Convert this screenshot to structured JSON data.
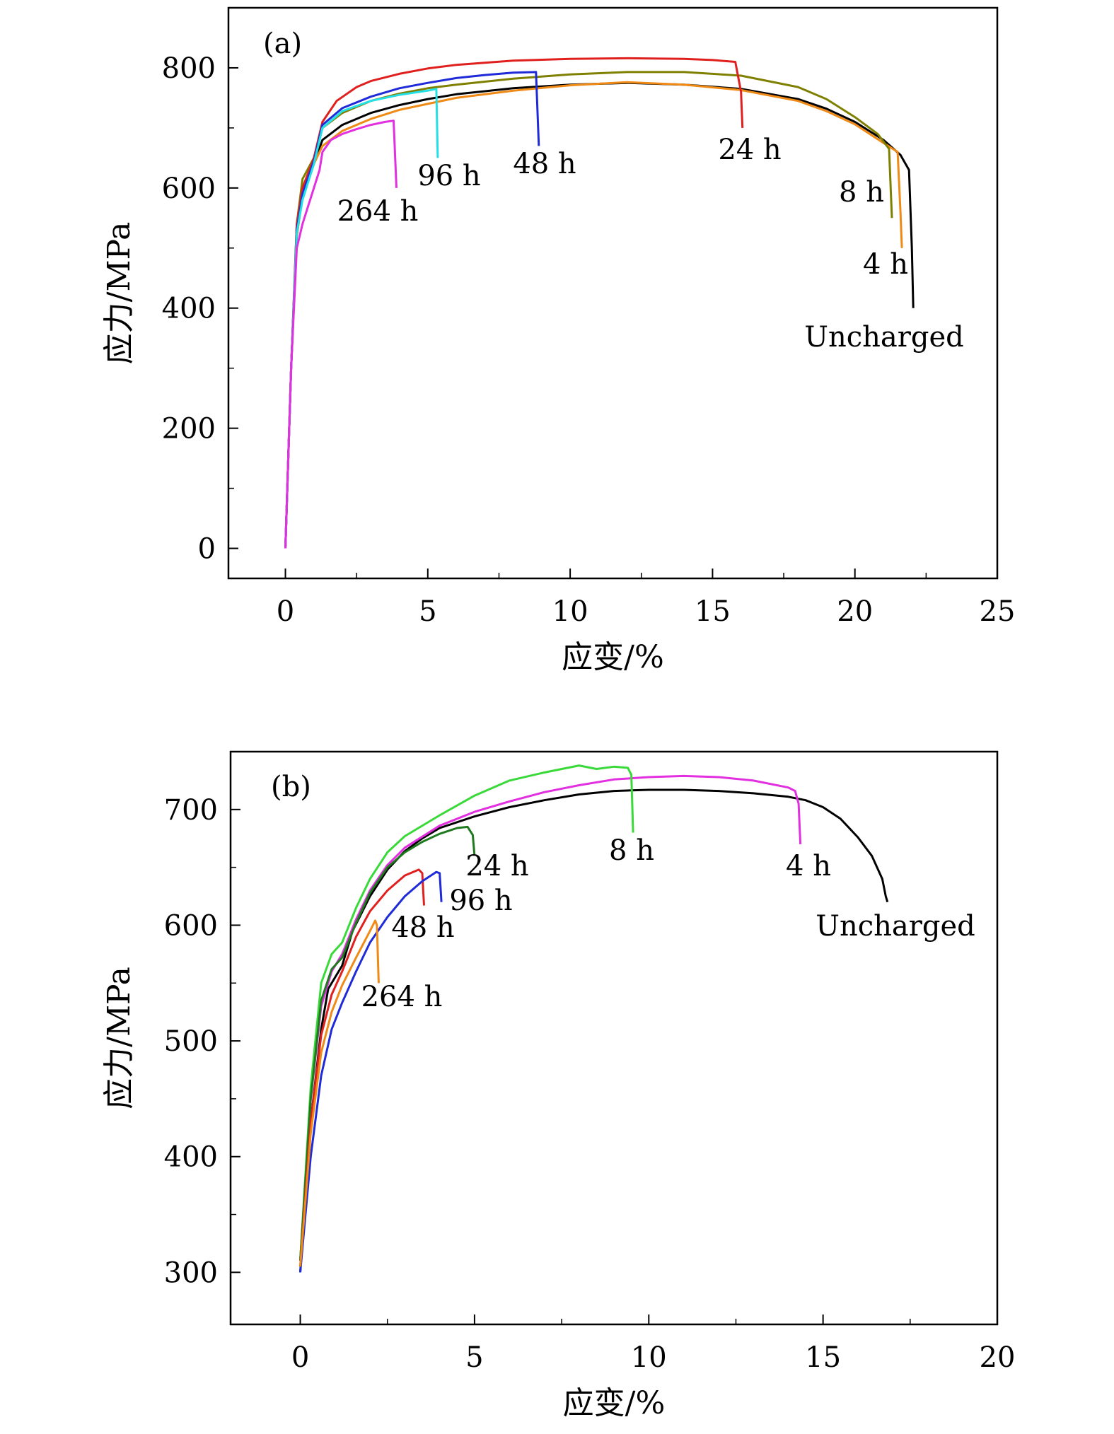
{
  "chart_data": [
    {
      "type": "line",
      "panel_label": "(a)",
      "xlabel": "应变/%",
      "ylabel": "应力/MPa",
      "xlim": [
        -2,
        25
      ],
      "ylim": [
        -50,
        900
      ],
      "xticks": [
        0,
        5,
        10,
        15,
        20,
        25
      ],
      "yticks": [
        0,
        200,
        400,
        600,
        800
      ],
      "grid": false,
      "series": [
        {
          "name": "Uncharged",
          "color": "#000000",
          "label": "Uncharged",
          "x": [
            0,
            0.2,
            0.4,
            0.6,
            1.0,
            1.3,
            2,
            3,
            4,
            5,
            6,
            8,
            10,
            12,
            14,
            16,
            18,
            19,
            20,
            21,
            21.6,
            21.9,
            22.0,
            22.05
          ],
          "y": [
            0,
            300,
            520,
            590,
            640,
            680,
            705,
            725,
            738,
            748,
            756,
            766,
            772,
            775,
            772,
            765,
            748,
            732,
            710,
            680,
            655,
            630,
            500,
            400
          ]
        },
        {
          "name": "4 h",
          "color": "#f08a17",
          "label": "4 h",
          "x": [
            0,
            0.2,
            0.4,
            0.6,
            1.0,
            1.3,
            2,
            3,
            4,
            5,
            6,
            8,
            10,
            12,
            14,
            16,
            18,
            19,
            20,
            21,
            21.5,
            21.6,
            21.65
          ],
          "y": [
            0,
            300,
            520,
            585,
            640,
            670,
            695,
            715,
            730,
            740,
            750,
            762,
            771,
            776,
            772,
            763,
            745,
            728,
            706,
            675,
            660,
            560,
            500
          ]
        },
        {
          "name": "8 h",
          "color": "#808000",
          "label": "8 h",
          "x": [
            0,
            0.2,
            0.4,
            0.6,
            1.0,
            1.3,
            2,
            3,
            4,
            5,
            6,
            8,
            10,
            12,
            14,
            16,
            18,
            19,
            20,
            20.8,
            21.2,
            21.3
          ],
          "y": [
            0,
            300,
            540,
            615,
            650,
            700,
            725,
            745,
            757,
            766,
            772,
            782,
            789,
            793,
            793,
            787,
            768,
            748,
            718,
            690,
            665,
            550
          ]
        },
        {
          "name": "24 h",
          "color": "#e0201f",
          "label": "24 h",
          "x": [
            0,
            0.2,
            0.4,
            0.6,
            1.0,
            1.3,
            1.8,
            2.5,
            3,
            4,
            5,
            6,
            8,
            10,
            12,
            14,
            15,
            15.8,
            16.0,
            16.05
          ],
          "y": [
            0,
            300,
            540,
            600,
            650,
            710,
            745,
            768,
            778,
            790,
            799,
            805,
            812,
            815,
            816,
            815,
            813,
            810,
            760,
            700
          ]
        },
        {
          "name": "48 h",
          "color": "#1f2bd9",
          "label": "48 h",
          "x": [
            0,
            0.2,
            0.4,
            0.6,
            1.0,
            1.3,
            2,
            3,
            4,
            5,
            6,
            7,
            8,
            8.8,
            8.9
          ],
          "y": [
            0,
            300,
            530,
            590,
            645,
            705,
            733,
            752,
            766,
            775,
            783,
            788,
            792,
            793,
            670
          ]
        },
        {
          "name": "96 h",
          "color": "#23e0e6",
          "label": "96 h",
          "x": [
            0,
            0.2,
            0.4,
            0.6,
            1.0,
            1.3,
            2,
            3,
            4,
            5,
            5.3,
            5.35
          ],
          "y": [
            0,
            300,
            525,
            580,
            640,
            700,
            728,
            745,
            755,
            762,
            765,
            650
          ]
        },
        {
          "name": "264 h",
          "color": "#e22fe0",
          "label": "264 h",
          "x": [
            0,
            0.2,
            0.4,
            0.6,
            0.8,
            1.0,
            1.2,
            1.3,
            1.6,
            2,
            2.5,
            3,
            3.5,
            3.8,
            3.9
          ],
          "y": [
            0,
            300,
            500,
            540,
            570,
            600,
            630,
            660,
            680,
            690,
            698,
            705,
            710,
            712,
            600
          ]
        }
      ]
    },
    {
      "type": "line",
      "panel_label": "(b)",
      "xlabel": "应变/%",
      "ylabel": "应力/MPa",
      "xlim": [
        -2,
        20
      ],
      "ylim": [
        255,
        750
      ],
      "xticks": [
        0,
        5,
        10,
        15,
        20
      ],
      "yticks": [
        300,
        400,
        500,
        600,
        700
      ],
      "grid": false,
      "series": [
        {
          "name": "Uncharged",
          "color": "#000000",
          "label": "Uncharged",
          "x": [
            0,
            0.3,
            0.6,
            0.8,
            1.0,
            1.2,
            1.5,
            2,
            2.5,
            3,
            3.5,
            4,
            5,
            6,
            7,
            8,
            9,
            10,
            11,
            12,
            13,
            14,
            14.5,
            15,
            15.5,
            16,
            16.4,
            16.7,
            16.8,
            16.85
          ],
          "y": [
            300,
            430,
            510,
            545,
            555,
            565,
            595,
            625,
            648,
            664,
            675,
            684,
            694,
            702,
            708,
            713,
            716,
            717,
            717,
            716,
            714,
            711,
            708,
            702,
            692,
            676,
            660,
            640,
            625,
            620
          ]
        },
        {
          "name": "4 h",
          "color": "#e22fe0",
          "label": "4 h",
          "x": [
            0,
            0.3,
            0.6,
            0.9,
            1.2,
            1.6,
            2,
            2.5,
            3,
            4,
            5,
            6,
            7,
            8,
            9,
            10,
            11,
            12,
            13,
            14,
            14.2,
            14.3,
            14.35
          ],
          "y": [
            310,
            450,
            530,
            560,
            575,
            605,
            630,
            652,
            667,
            686,
            698,
            707,
            715,
            721,
            726,
            728,
            729,
            728,
            725,
            719,
            716,
            705,
            670
          ]
        },
        {
          "name": "8 h",
          "color": "#3ad93a",
          "label": "8 h",
          "x": [
            0,
            0.3,
            0.6,
            0.9,
            1.2,
            1.6,
            2,
            2.5,
            3,
            4,
            5,
            6,
            7,
            8,
            8.5,
            9,
            9.4,
            9.5,
            9.55
          ],
          "y": [
            310,
            460,
            550,
            575,
            585,
            615,
            640,
            663,
            677,
            695,
            712,
            725,
            732,
            738,
            735,
            737,
            736,
            730,
            680
          ]
        },
        {
          "name": "24 h",
          "color": "#1f7a1f",
          "label": "24 h",
          "x": [
            0,
            0.3,
            0.6,
            0.9,
            1.2,
            1.6,
            2,
            2.5,
            3,
            3.5,
            4,
            4.5,
            4.8,
            4.95,
            5.0
          ],
          "y": [
            310,
            450,
            535,
            562,
            572,
            602,
            628,
            650,
            663,
            672,
            679,
            684,
            685,
            678,
            660
          ]
        },
        {
          "name": "48 h",
          "color": "#e0201f",
          "label": "48 h",
          "x": [
            0,
            0.3,
            0.6,
            0.9,
            1.2,
            1.6,
            2,
            2.5,
            3,
            3.4,
            3.5,
            3.55
          ],
          "y": [
            305,
            430,
            505,
            540,
            560,
            590,
            612,
            630,
            643,
            648,
            645,
            617
          ]
        },
        {
          "name": "96 h",
          "color": "#1f2bd9",
          "label": "96 h",
          "x": [
            0,
            0.3,
            0.6,
            0.9,
            1.2,
            1.6,
            2,
            2.5,
            3,
            3.5,
            3.9,
            4.0,
            4.05
          ],
          "y": [
            300,
            400,
            470,
            510,
            533,
            560,
            585,
            607,
            625,
            638,
            646,
            645,
            620
          ]
        },
        {
          "name": "264 h",
          "color": "#f08a17",
          "label": "264 h",
          "x": [
            0,
            0.3,
            0.6,
            0.9,
            1.2,
            1.6,
            2,
            2.15,
            2.2,
            2.25
          ],
          "y": [
            305,
            420,
            490,
            525,
            548,
            572,
            595,
            604,
            600,
            550
          ]
        }
      ]
    }
  ]
}
